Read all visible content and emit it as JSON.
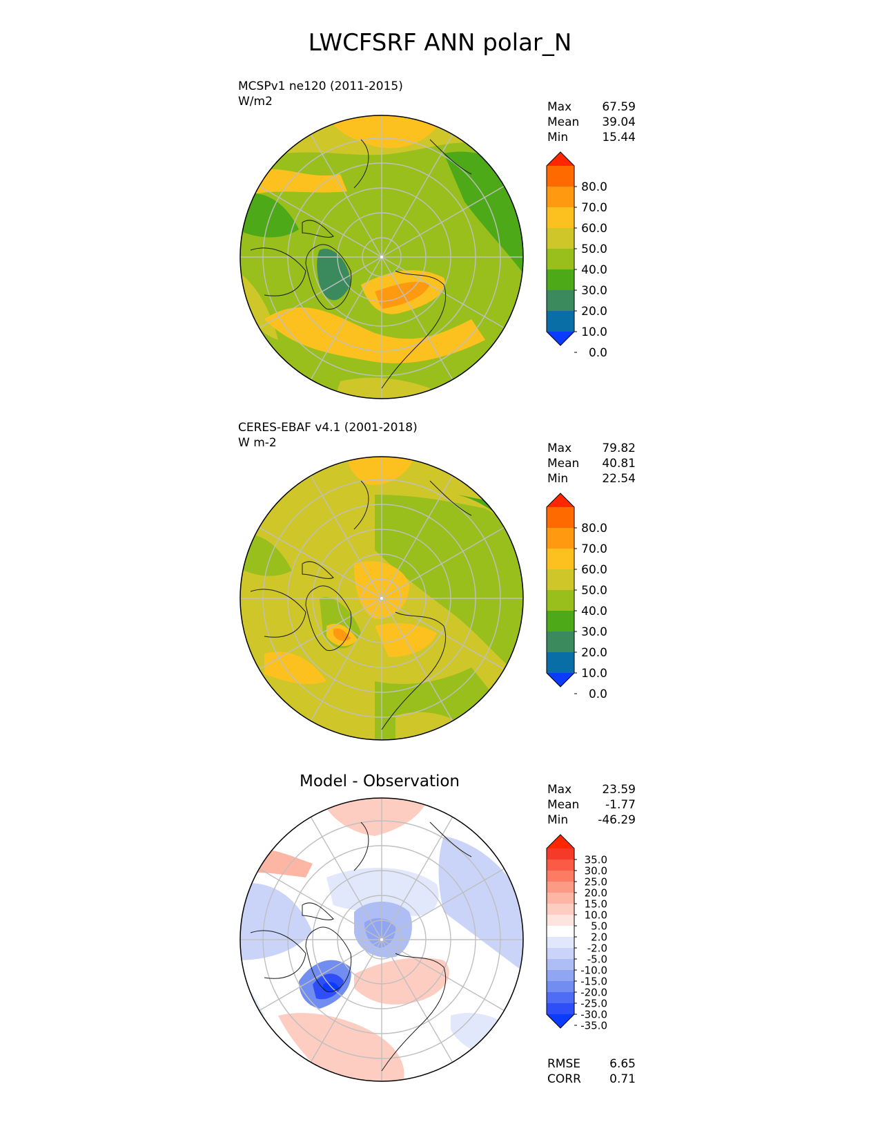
{
  "figure_title": "LWCFSRF ANN polar_N",
  "panels": [
    {
      "label_line1": "MCSPv1 ne120 (2011-2015)",
      "label_line2": "W/m2",
      "stats": [
        {
          "name": "Max",
          "value": "67.59"
        },
        {
          "name": "Mean",
          "value": "39.04"
        },
        {
          "name": "Min",
          "value": "15.44"
        }
      ],
      "colorbar": {
        "ticks": [
          "80.0",
          "70.0",
          "60.0",
          "50.0",
          "40.0",
          "30.0",
          "20.0",
          "10.0",
          "0.0"
        ],
        "colors": [
          "#ff2600",
          "#ff6a00",
          "#ff9a10",
          "#fdc11f",
          "#cfc62a",
          "#99bf1d",
          "#4ea919",
          "#3b8a5e",
          "#0a6ea6",
          "#0a3bff"
        ]
      }
    },
    {
      "label_line1": "CERES-EBAF v4.1 (2001-2018)",
      "label_line2": "W m-2",
      "stats": [
        {
          "name": "Max",
          "value": "79.82"
        },
        {
          "name": "Mean",
          "value": "40.81"
        },
        {
          "name": "Min",
          "value": "22.54"
        }
      ],
      "colorbar": {
        "ticks": [
          "80.0",
          "70.0",
          "60.0",
          "50.0",
          "40.0",
          "30.0",
          "20.0",
          "10.0",
          "0.0"
        ],
        "colors": [
          "#ff2600",
          "#ff6a00",
          "#ff9a10",
          "#fdc11f",
          "#cfc62a",
          "#99bf1d",
          "#4ea919",
          "#3b8a5e",
          "#0a6ea6",
          "#0a3bff"
        ]
      }
    },
    {
      "title": "Model - Observation",
      "stats": [
        {
          "name": "Max",
          "value": "23.59"
        },
        {
          "name": "Mean",
          "value": "-1.77"
        },
        {
          "name": "Min",
          "value": "-46.29"
        }
      ],
      "colorbar": {
        "ticks": [
          "35.0",
          "30.0",
          "25.0",
          "20.0",
          "15.0",
          "10.0",
          "5.0",
          "2.0",
          "-2.0",
          "-5.0",
          "-10.0",
          "-15.0",
          "-20.0",
          "-25.0",
          "-30.0",
          "-35.0"
        ],
        "colors": [
          "#ff2600",
          "#f53a2a",
          "#fb5a46",
          "#fd7b63",
          "#fd9a85",
          "#fdb5a4",
          "#fdcdc2",
          "#fde4de",
          "#ffffff",
          "#e1e8fb",
          "#c9d4f8",
          "#aebef5",
          "#90a6f2",
          "#718df0",
          "#4f6df4",
          "#2e4ff7",
          "#0a3bff"
        ]
      },
      "metrics": [
        {
          "name": "RMSE",
          "value": "6.65"
        },
        {
          "name": "CORR",
          "value": "0.71"
        }
      ]
    }
  ]
}
